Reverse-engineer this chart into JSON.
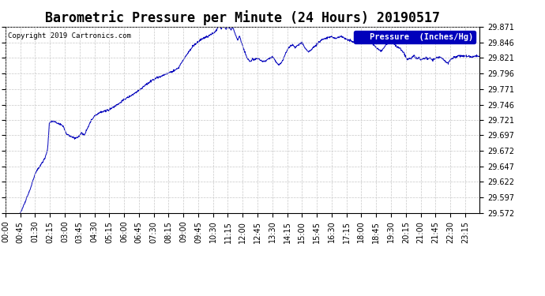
{
  "title": "Barometric Pressure per Minute (24 Hours) 20190517",
  "copyright_text": "Copyright 2019 Cartronics.com",
  "legend_label": "Pressure  (Inches/Hg)",
  "line_color": "#0000bb",
  "background_color": "#ffffff",
  "grid_color": "#c8c8c8",
  "legend_bg": "#0000bb",
  "legend_fg": "#ffffff",
  "ylim": [
    29.572,
    29.871
  ],
  "yticks": [
    29.572,
    29.597,
    29.622,
    29.647,
    29.672,
    29.697,
    29.721,
    29.746,
    29.771,
    29.796,
    29.821,
    29.846,
    29.871
  ],
  "xtick_labels": [
    "00:00",
    "00:45",
    "01:30",
    "02:15",
    "03:00",
    "03:45",
    "04:30",
    "05:15",
    "06:00",
    "06:45",
    "07:30",
    "08:15",
    "09:00",
    "09:45",
    "10:30",
    "11:15",
    "12:00",
    "12:45",
    "13:30",
    "14:15",
    "15:00",
    "15:45",
    "16:30",
    "17:15",
    "18:00",
    "18:45",
    "19:30",
    "20:15",
    "21:00",
    "21:45",
    "22:30",
    "23:15"
  ],
  "title_fontsize": 12,
  "tick_fontsize": 7,
  "copyright_fontsize": 6.5,
  "legend_fontsize": 7.5,
  "waypoints": [
    [
      0,
      29.527
    ],
    [
      15,
      29.54
    ],
    [
      30,
      29.558
    ],
    [
      45,
      29.572
    ],
    [
      60,
      29.59
    ],
    [
      75,
      29.61
    ],
    [
      90,
      29.635
    ],
    [
      105,
      29.648
    ],
    [
      120,
      29.66
    ],
    [
      128,
      29.675
    ],
    [
      133,
      29.715
    ],
    [
      140,
      29.72
    ],
    [
      150,
      29.718
    ],
    [
      160,
      29.715
    ],
    [
      175,
      29.712
    ],
    [
      185,
      29.699
    ],
    [
      200,
      29.695
    ],
    [
      210,
      29.692
    ],
    [
      220,
      29.694
    ],
    [
      230,
      29.7
    ],
    [
      240,
      29.698
    ],
    [
      250,
      29.71
    ],
    [
      260,
      29.72
    ],
    [
      270,
      29.728
    ],
    [
      285,
      29.733
    ],
    [
      300,
      29.735
    ],
    [
      315,
      29.738
    ],
    [
      330,
      29.743
    ],
    [
      345,
      29.748
    ],
    [
      360,
      29.754
    ],
    [
      390,
      29.763
    ],
    [
      420,
      29.775
    ],
    [
      450,
      29.787
    ],
    [
      480,
      29.793
    ],
    [
      510,
      29.8
    ],
    [
      525,
      29.805
    ],
    [
      540,
      29.818
    ],
    [
      555,
      29.83
    ],
    [
      570,
      29.84
    ],
    [
      585,
      29.847
    ],
    [
      600,
      29.852
    ],
    [
      615,
      29.856
    ],
    [
      630,
      29.86
    ],
    [
      640,
      29.865
    ],
    [
      645,
      29.87
    ],
    [
      650,
      29.872
    ],
    [
      655,
      29.868
    ],
    [
      660,
      29.873
    ],
    [
      665,
      29.87
    ],
    [
      670,
      29.867
    ],
    [
      675,
      29.872
    ],
    [
      680,
      29.87
    ],
    [
      685,
      29.865
    ],
    [
      690,
      29.87
    ],
    [
      695,
      29.862
    ],
    [
      700,
      29.856
    ],
    [
      705,
      29.85
    ],
    [
      710,
      29.856
    ],
    [
      715,
      29.848
    ],
    [
      720,
      29.84
    ],
    [
      725,
      29.832
    ],
    [
      730,
      29.825
    ],
    [
      735,
      29.82
    ],
    [
      740,
      29.816
    ],
    [
      745,
      29.815
    ],
    [
      750,
      29.82
    ],
    [
      755,
      29.818
    ],
    [
      760,
      29.82
    ],
    [
      765,
      29.82
    ],
    [
      770,
      29.818
    ],
    [
      775,
      29.816
    ],
    [
      780,
      29.815
    ],
    [
      790,
      29.816
    ],
    [
      800,
      29.82
    ],
    [
      810,
      29.822
    ],
    [
      815,
      29.82
    ],
    [
      820,
      29.815
    ],
    [
      825,
      29.812
    ],
    [
      830,
      29.81
    ],
    [
      840,
      29.815
    ],
    [
      850,
      29.828
    ],
    [
      860,
      29.838
    ],
    [
      870,
      29.842
    ],
    [
      880,
      29.838
    ],
    [
      890,
      29.843
    ],
    [
      900,
      29.845
    ],
    [
      910,
      29.836
    ],
    [
      920,
      29.83
    ],
    [
      930,
      29.835
    ],
    [
      940,
      29.84
    ],
    [
      950,
      29.845
    ],
    [
      960,
      29.85
    ],
    [
      970,
      29.852
    ],
    [
      980,
      29.854
    ],
    [
      990,
      29.855
    ],
    [
      1000,
      29.852
    ],
    [
      1010,
      29.854
    ],
    [
      1020,
      29.855
    ],
    [
      1030,
      29.852
    ],
    [
      1040,
      29.85
    ],
    [
      1050,
      29.848
    ],
    [
      1060,
      29.845
    ],
    [
      1070,
      29.848
    ],
    [
      1080,
      29.852
    ],
    [
      1090,
      29.852
    ],
    [
      1100,
      29.85
    ],
    [
      1110,
      29.847
    ],
    [
      1120,
      29.84
    ],
    [
      1130,
      29.835
    ],
    [
      1140,
      29.832
    ],
    [
      1150,
      29.838
    ],
    [
      1160,
      29.844
    ],
    [
      1170,
      29.848
    ],
    [
      1180,
      29.843
    ],
    [
      1190,
      29.838
    ],
    [
      1200,
      29.835
    ],
    [
      1210,
      29.828
    ],
    [
      1215,
      29.822
    ],
    [
      1220,
      29.818
    ],
    [
      1225,
      29.82
    ],
    [
      1230,
      29.82
    ],
    [
      1240,
      29.825
    ],
    [
      1245,
      29.82
    ],
    [
      1250,
      29.82
    ],
    [
      1255,
      29.822
    ],
    [
      1260,
      29.818
    ],
    [
      1270,
      29.82
    ],
    [
      1275,
      29.822
    ],
    [
      1280,
      29.82
    ],
    [
      1290,
      29.82
    ],
    [
      1295,
      29.818
    ],
    [
      1305,
      29.82
    ],
    [
      1315,
      29.822
    ],
    [
      1320,
      29.822
    ],
    [
      1330,
      29.818
    ],
    [
      1335,
      29.815
    ],
    [
      1340,
      29.812
    ],
    [
      1345,
      29.814
    ],
    [
      1355,
      29.82
    ],
    [
      1365,
      29.822
    ],
    [
      1375,
      29.824
    ],
    [
      1385,
      29.824
    ],
    [
      1395,
      29.824
    ],
    [
      1405,
      29.823
    ],
    [
      1415,
      29.822
    ],
    [
      1425,
      29.824
    ],
    [
      1439,
      29.824
    ]
  ]
}
